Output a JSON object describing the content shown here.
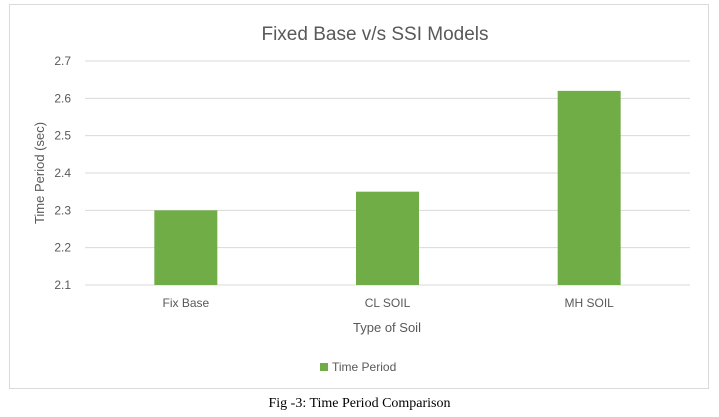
{
  "figure": {
    "caption": "Fig -3: Time Period Comparison"
  },
  "chart_data": {
    "type": "bar",
    "title": "Fixed Base v/s SSI Models",
    "xlabel": "Type of Soil",
    "ylabel": "Time Period (sec)",
    "categories": [
      "Fix Base",
      "CL SOIL",
      "MH SOIL"
    ],
    "series": [
      {
        "name": "Time Period",
        "values": [
          2.3,
          2.35,
          2.62
        ],
        "color": "#70ad47"
      }
    ],
    "ylim": [
      2.1,
      2.7
    ],
    "yticks": [
      "2.1",
      "2.2",
      "2.3",
      "2.4",
      "2.5",
      "2.6",
      "2.7"
    ],
    "grid": true,
    "legend_position": "bottom"
  }
}
